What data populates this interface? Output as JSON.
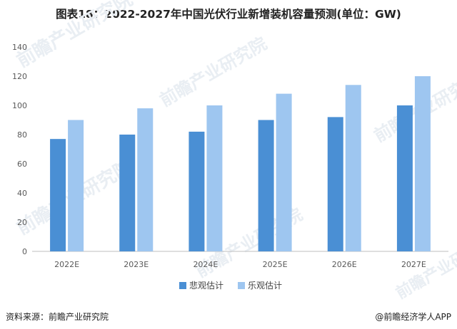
{
  "chart_data": {
    "type": "bar",
    "title": "图表18：2022-2027年中国光伏行业新增装机容量预测(单位：GW)",
    "categories": [
      "2022E",
      "2023E",
      "2024E",
      "2025E",
      "2026E",
      "2027E"
    ],
    "series": [
      {
        "name": "悲观估计",
        "color": "#4a8fd4",
        "values": [
          77,
          80,
          82,
          90,
          92,
          100
        ]
      },
      {
        "name": "乐观估计",
        "color": "#9ec6f0",
        "values": [
          90,
          98,
          100,
          108,
          114,
          120
        ]
      }
    ],
    "ylim": [
      0,
      140
    ],
    "yticks": [
      0,
      20,
      40,
      60,
      80,
      100,
      120,
      140
    ],
    "xlabel": "",
    "ylabel": "",
    "legend_position": "bottom",
    "grid": false
  },
  "watermark_text": "前瞻产业研究院",
  "footer": {
    "source": "资料来源：前瞻产业研究院",
    "credit": "@前瞻经济学人APP"
  }
}
